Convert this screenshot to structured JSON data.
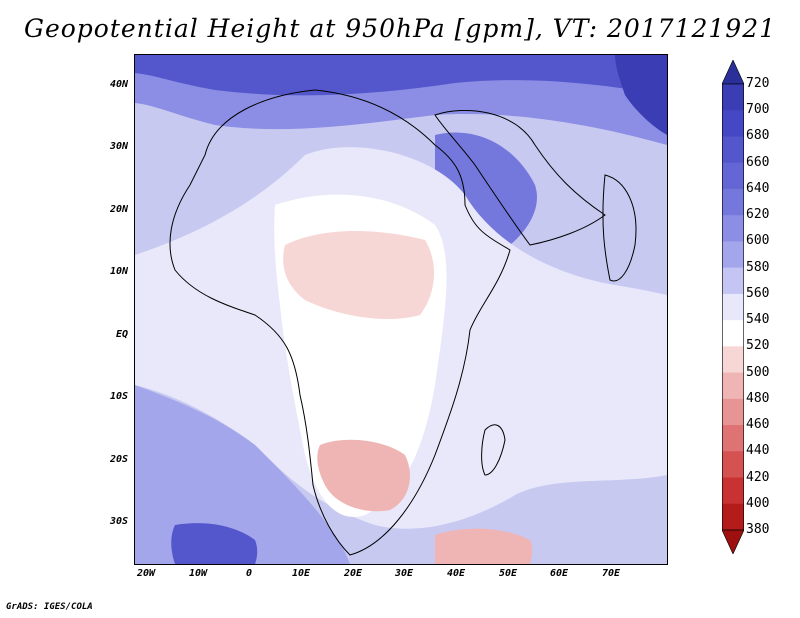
{
  "title": "Geopotential Height at 950hPa [gpm], VT: 2017121921",
  "credit": "GrADS: IGES/COLA",
  "map": {
    "lat_labels": [
      "40N",
      "30N",
      "20N",
      "10N",
      "EQ",
      "10S",
      "20S",
      "30S"
    ],
    "lon_labels": [
      "20W",
      "10W",
      "0",
      "10E",
      "20E",
      "30E",
      "40E",
      "50E",
      "60E",
      "70E"
    ],
    "lat_values": [
      40,
      30,
      20,
      10,
      0,
      -10,
      -20,
      -30
    ],
    "lon_values": [
      -20,
      -10,
      0,
      10,
      20,
      30,
      40,
      50,
      60,
      70
    ]
  },
  "colorbar": {
    "labels": [
      "720",
      "700",
      "680",
      "660",
      "640",
      "620",
      "600",
      "580",
      "560",
      "540",
      "520",
      "500",
      "480",
      "460",
      "440",
      "420",
      "400",
      "380"
    ],
    "colors": [
      "#2a2f9a",
      "#3a3db4",
      "#4548c4",
      "#5457cc",
      "#6366d4",
      "#7477dc",
      "#8b8ee4",
      "#a4a6ec",
      "#c4c5f2",
      "#e8e8fa",
      "#ffffff",
      "#f7d6d6",
      "#efb5b5",
      "#e79494",
      "#df7373",
      "#d45252",
      "#c93232",
      "#b41c1c",
      "#9e1010"
    ],
    "units": "gpm"
  }
}
